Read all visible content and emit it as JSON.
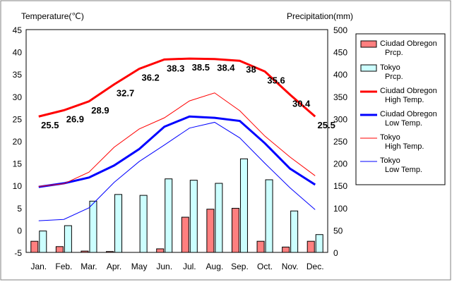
{
  "chart_data": {
    "type": "bar+line",
    "left_axis_label": "Temperature(℃)",
    "right_axis_label": "Precipitation(mm)",
    "left_ylim": [
      -5,
      45
    ],
    "left_ticks": [
      45,
      40,
      35,
      30,
      25,
      20,
      15,
      10,
      5,
      0,
      -5
    ],
    "right_ylim": [
      0,
      500
    ],
    "right_ticks": [
      500,
      450,
      400,
      350,
      300,
      250,
      200,
      150,
      100,
      50,
      0
    ],
    "categories": [
      "Jan.",
      "Feb.",
      "Mar.",
      "Apr.",
      "May",
      "Jun.",
      "Jul.",
      "Aug.",
      "Sep.",
      "Oct.",
      "Nov.",
      "Dec."
    ],
    "series": [
      {
        "name": "Ciudad Obregon\nPrcp.",
        "kind": "bar",
        "axis": "right",
        "color": "#ff7f7f",
        "values": [
          25,
          13,
          3,
          2,
          0,
          8,
          79,
          97,
          99,
          25,
          12,
          25
        ]
      },
      {
        "name": "Tokyo\nPrcp.",
        "kind": "bar",
        "axis": "right",
        "color": "#ccffff",
        "values": [
          48,
          60,
          115,
          130,
          128,
          165,
          162,
          155,
          210,
          163,
          93,
          40
        ]
      },
      {
        "name": "Ciudad Obregon\nHigh Temp.",
        "kind": "line",
        "axis": "left",
        "color": "#ff0000",
        "width": 3,
        "values": [
          25.5,
          26.9,
          28.9,
          32.7,
          36.2,
          38.3,
          38.5,
          38.4,
          38,
          35.6,
          30.4,
          25.5
        ]
      },
      {
        "name": "Ciudad Obregon\nLow Temp.",
        "kind": "line",
        "axis": "left",
        "color": "#0000ff",
        "width": 3,
        "values": [
          9.7,
          10.5,
          11.8,
          14.5,
          18.2,
          23.2,
          25.5,
          25.2,
          24.5,
          19.5,
          13.8,
          10.2
        ]
      },
      {
        "name": "Tokyo\nHigh Temp.",
        "kind": "line",
        "axis": "left",
        "color": "#ff0000",
        "width": 1,
        "values": [
          9.8,
          10.4,
          13.0,
          18.6,
          22.7,
          25.2,
          29.0,
          30.8,
          26.8,
          21.1,
          16.4,
          12.2
        ]
      },
      {
        "name": "Tokyo\nLow Temp.",
        "kind": "line",
        "axis": "left",
        "color": "#0000ff",
        "width": 1,
        "values": [
          2.1,
          2.4,
          5.0,
          10.7,
          15.4,
          19.1,
          22.9,
          24.2,
          20.7,
          15.0,
          9.5,
          4.6
        ]
      }
    ],
    "data_labels": [
      {
        "series": "Ciudad Obregon\nHigh Temp.",
        "texts": [
          "25.5",
          "26.9",
          "28.9",
          "32.7",
          "36.2",
          "38.3",
          "38.5",
          "38.4",
          "38",
          "35.6",
          "30.4",
          "25.5"
        ]
      }
    ],
    "legend_position": "right",
    "grid": false
  }
}
